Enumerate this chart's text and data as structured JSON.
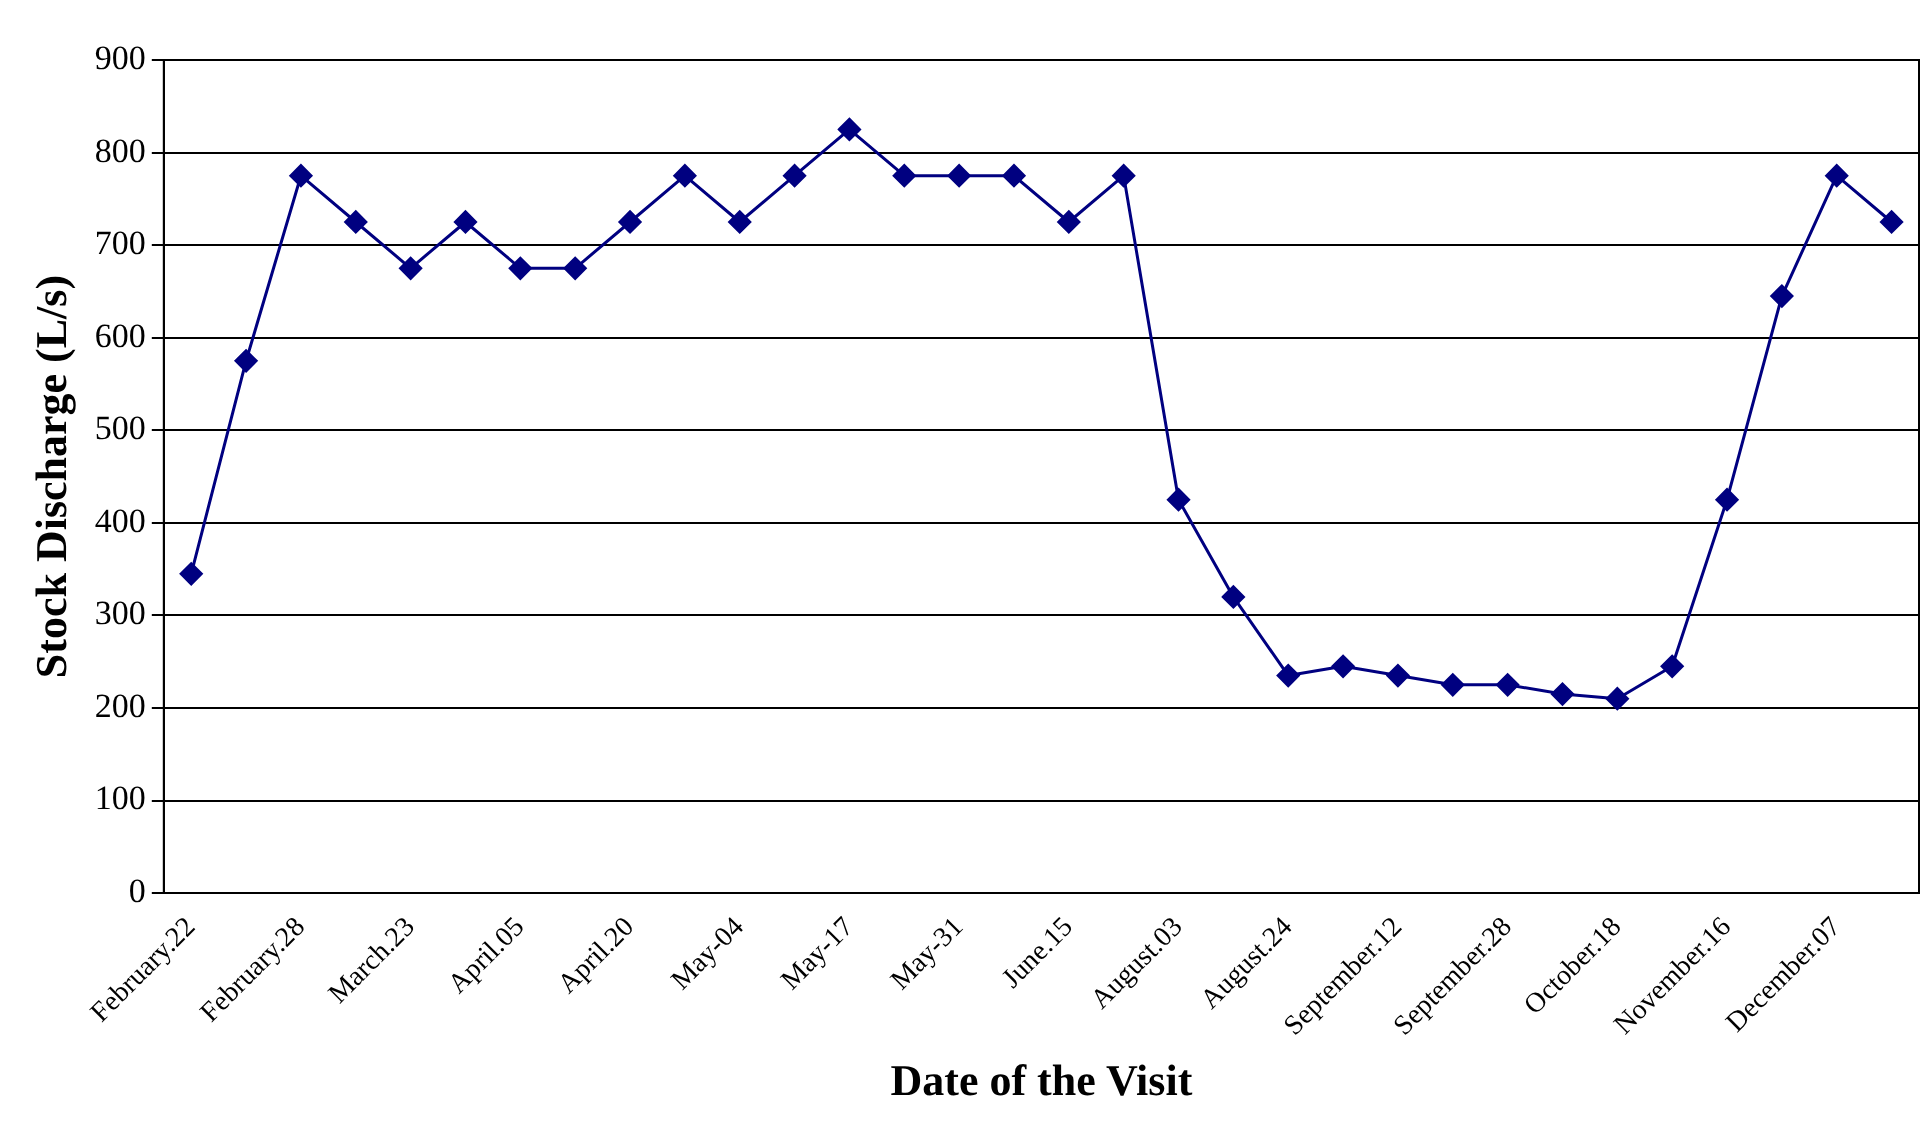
{
  "chart_data": {
    "type": "line",
    "xlabel": "Date of the Visit",
    "ylabel": "Stock Discharge (L/s)",
    "categories": [
      "February.22",
      null,
      "February.28",
      null,
      "March.23",
      null,
      "April.05",
      null,
      "April.20",
      null,
      "May-04",
      null,
      "May-17",
      null,
      "May-31",
      null,
      "June.15",
      null,
      "August.03",
      null,
      "August.24",
      null,
      "September.12",
      null,
      "September.28",
      null,
      "October.18",
      null,
      "November.16",
      null,
      "December.07",
      null
    ],
    "series": [
      {
        "color": "#000080",
        "values": [
          345,
          575,
          775,
          725,
          675,
          725,
          675,
          675,
          725,
          775,
          725,
          775,
          825,
          775,
          775,
          775,
          725,
          775,
          425,
          320,
          235,
          245,
          235,
          225,
          225,
          215,
          210,
          245,
          425,
          645,
          775,
          725
        ]
      }
    ],
    "ylim": [
      0,
      900
    ],
    "yticks": [
      0,
      100,
      200,
      300,
      400,
      500,
      600,
      700,
      800,
      900
    ],
    "grid": "y",
    "legend": false,
    "marker": "diamond",
    "line_style": "solid"
  }
}
